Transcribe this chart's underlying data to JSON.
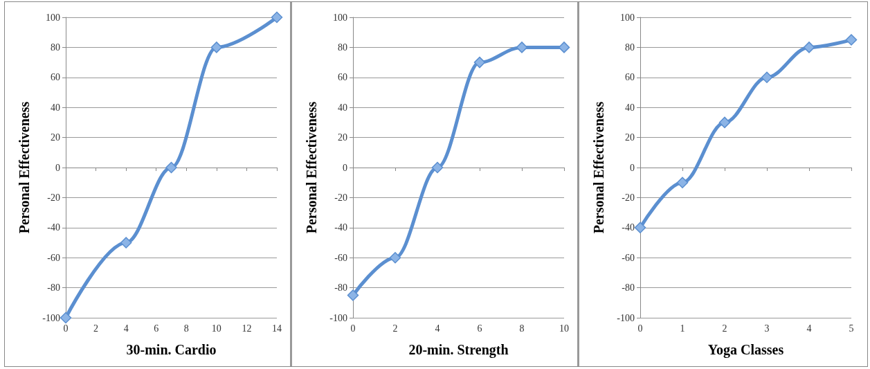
{
  "chart_data": [
    {
      "type": "line",
      "xlabel": "30-min. Cardio",
      "ylabel": "Personal Effectiveness",
      "x": [
        0,
        4,
        7,
        10,
        14
      ],
      "series": [
        {
          "color": "#5b8fd0",
          "values": [
            -100,
            -50,
            0,
            80,
            100
          ]
        }
      ],
      "xlim": [
        0,
        14
      ],
      "xticks": [
        0,
        2,
        4,
        6,
        8,
        10,
        12,
        14
      ],
      "ylim": [
        -100,
        100
      ],
      "yticks": [
        -100,
        -80,
        -60,
        -40,
        -20,
        0,
        20,
        40,
        60,
        80,
        100
      ],
      "grid": "y",
      "marker": "diamond",
      "line_style": "solid"
    },
    {
      "type": "line",
      "xlabel": "20-min. Strength",
      "ylabel": "Personal Effectiveness",
      "x": [
        0,
        2,
        4,
        6,
        8,
        10
      ],
      "series": [
        {
          "color": "#5b8fd0",
          "values": [
            -85,
            -60,
            0,
            70,
            80,
            80
          ]
        }
      ],
      "xlim": [
        0,
        10
      ],
      "xticks": [
        0,
        2,
        4,
        6,
        8,
        10
      ],
      "ylim": [
        -100,
        100
      ],
      "yticks": [
        -100,
        -80,
        -60,
        -40,
        -20,
        0,
        20,
        40,
        60,
        80,
        100
      ],
      "grid": "y",
      "marker": "diamond",
      "line_style": "solid"
    },
    {
      "type": "line",
      "xlabel": "Yoga Classes",
      "ylabel": "Personal Effectiveness",
      "x": [
        0,
        1,
        2,
        3,
        4,
        5
      ],
      "series": [
        {
          "color": "#5b8fd0",
          "values": [
            -40,
            -10,
            30,
            60,
            80,
            85
          ]
        }
      ],
      "xlim": [
        0,
        5
      ],
      "xticks": [
        0,
        1,
        2,
        3,
        4,
        5
      ],
      "ylim": [
        -100,
        100
      ],
      "yticks": [
        -100,
        -80,
        -60,
        -40,
        -20,
        0,
        20,
        40,
        60,
        80,
        100
      ],
      "grid": "y",
      "marker": "diamond",
      "line_style": "solid"
    }
  ]
}
